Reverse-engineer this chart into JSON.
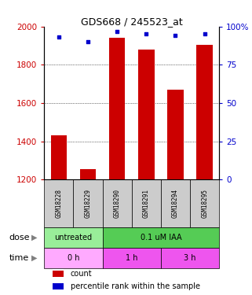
{
  "title": "GDS668 / 245523_at",
  "samples": [
    "GSM18228",
    "GSM18229",
    "GSM18290",
    "GSM18291",
    "GSM18294",
    "GSM18295"
  ],
  "bar_values": [
    1430,
    1255,
    1940,
    1880,
    1670,
    1905
  ],
  "percentile_values": [
    93,
    90,
    97,
    95,
    94,
    95
  ],
  "ylim_left": [
    1200,
    2000
  ],
  "ylim_right": [
    0,
    100
  ],
  "yticks_left": [
    1200,
    1400,
    1600,
    1800,
    2000
  ],
  "yticks_right": [
    0,
    25,
    50,
    75,
    100
  ],
  "bar_color": "#cc0000",
  "dot_color": "#0000cc",
  "dose_groups": [
    {
      "label": "untreated",
      "start": 0,
      "end": 2,
      "color": "#99ee99"
    },
    {
      "label": "0.1 uM IAA",
      "start": 2,
      "end": 6,
      "color": "#55cc55"
    }
  ],
  "time_groups": [
    {
      "label": "0 h",
      "start": 0,
      "end": 2,
      "color": "#ffaaff"
    },
    {
      "label": "1 h",
      "start": 2,
      "end": 4,
      "color": "#ee55ee"
    },
    {
      "label": "3 h",
      "start": 4,
      "end": 6,
      "color": "#ee55ee"
    }
  ],
  "dose_label": "dose",
  "time_label": "time",
  "legend_count": "count",
  "legend_percentile": "percentile rank within the sample",
  "tick_color_left": "#cc0000",
  "tick_color_right": "#0000cc",
  "sample_bg": "#cccccc"
}
